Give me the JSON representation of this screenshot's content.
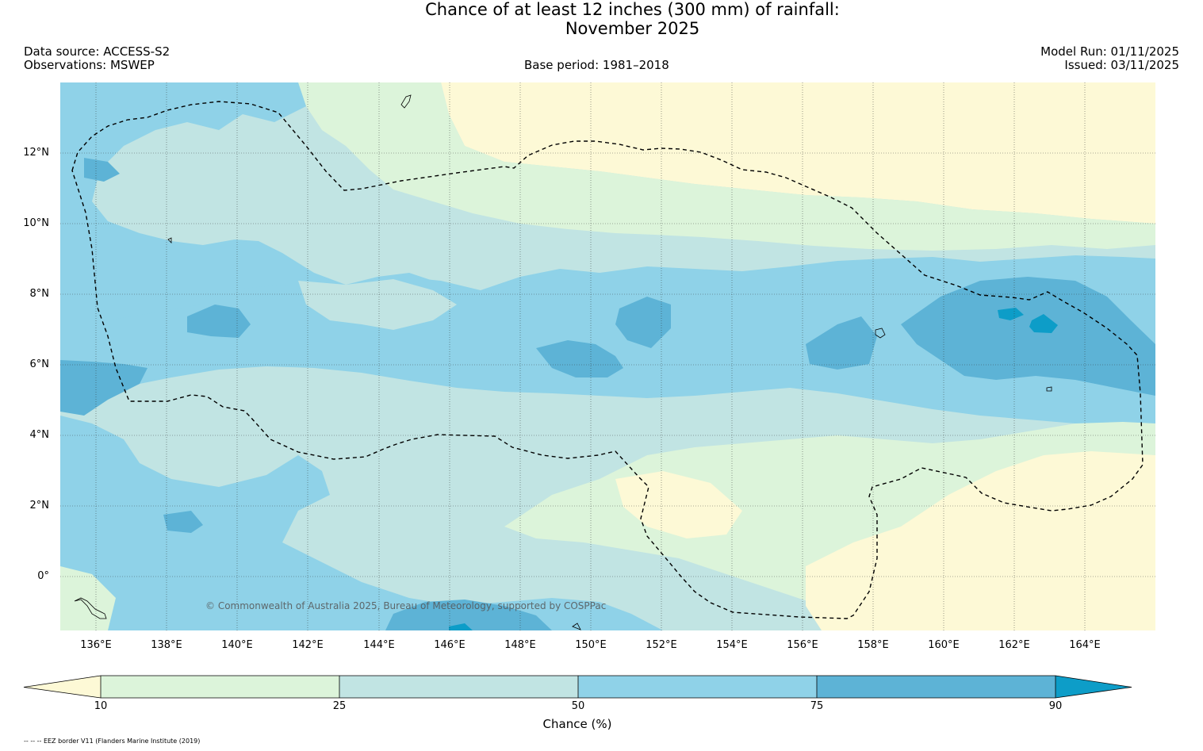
{
  "title": {
    "line1": "Chance of at least 12 inches (300  mm) of rainfall:",
    "line2": "November 2025"
  },
  "header": {
    "data_source": "Data source: ACCESS-S2",
    "observations": "Observations: MSWEP",
    "base_period": "Base period: 1981–2018",
    "model_run": "Model Run: 01/11/2025",
    "issued": "Issued: 03/11/2025"
  },
  "map": {
    "lon_range": [
      135,
      166
    ],
    "lat_range": [
      -1.5,
      14
    ],
    "lat_labels": [
      "12°N",
      "10°N",
      "8°N",
      "6°N",
      "4°N",
      "2°N",
      "0°"
    ],
    "lon_labels": [
      "136°E",
      "138°E",
      "140°E",
      "142°E",
      "144°E",
      "146°E",
      "148°E",
      "150°E",
      "152°E",
      "154°E",
      "156°E",
      "158°E",
      "160°E",
      "162°E",
      "164°E"
    ],
    "copyright": "© Commonwealth of Australia 2025, Bureau of Meteorology, supported by COSPPac",
    "eez_line": "dashed"
  },
  "colorbar": {
    "label": "Chance (%)",
    "ticks": [
      "10",
      "25",
      "50",
      "75",
      "90"
    ],
    "colors": {
      "lt10": "#fdf9d6",
      "c10_25": "#dcf4da",
      "c25_50": "#c1e4e3",
      "c50_75": "#8fd2e8",
      "c75_90": "#5db3d6",
      "gt90": "#0d9dc8"
    }
  },
  "footnote": "-- -- -- EEZ border V11 (Flanders Marine Institute (2019)"
}
